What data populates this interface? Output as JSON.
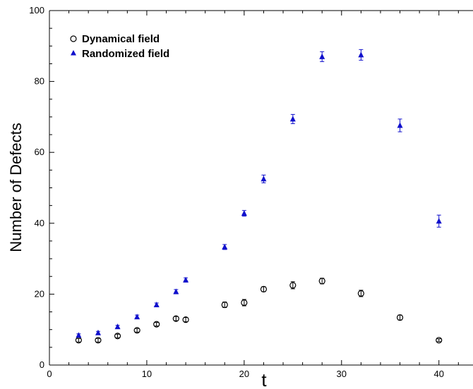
{
  "chart_data": {
    "type": "scatter",
    "title": "",
    "xlabel": "t",
    "ylabel": "Number of Defects",
    "xlim": [
      0,
      43.5
    ],
    "ylim": [
      0,
      100
    ],
    "xticks": [
      0,
      10,
      20,
      30,
      40
    ],
    "yticks": [
      0,
      20,
      40,
      60,
      80,
      100
    ],
    "grid": false,
    "legend_position": "top-left",
    "series": [
      {
        "name": "Dynamical field",
        "marker": "open-circle",
        "color": "#000000",
        "points": [
          {
            "x": 3,
            "y": 7.0,
            "err": 0.5
          },
          {
            "x": 5,
            "y": 7.0,
            "err": 0.5
          },
          {
            "x": 7,
            "y": 8.2,
            "err": 0.5
          },
          {
            "x": 9,
            "y": 9.8,
            "err": 0.5
          },
          {
            "x": 11,
            "y": 11.5,
            "err": 0.5
          },
          {
            "x": 13,
            "y": 13.1,
            "err": 0.6
          },
          {
            "x": 14,
            "y": 12.8,
            "err": 0.6
          },
          {
            "x": 18,
            "y": 17.0,
            "err": 0.8
          },
          {
            "x": 20,
            "y": 17.6,
            "err": 0.9
          },
          {
            "x": 22,
            "y": 21.4,
            "err": 0.7
          },
          {
            "x": 25,
            "y": 22.5,
            "err": 1.0
          },
          {
            "x": 28,
            "y": 23.7,
            "err": 0.8
          },
          {
            "x": 32,
            "y": 20.2,
            "err": 0.9
          },
          {
            "x": 36,
            "y": 13.4,
            "err": 0.7
          },
          {
            "x": 40,
            "y": 7.0,
            "err": 0.4
          }
        ]
      },
      {
        "name": "Randomized field",
        "marker": "filled-triangle",
        "color": "#1010cc",
        "points": [
          {
            "x": 3,
            "y": 8.4,
            "err": 0.4
          },
          {
            "x": 5,
            "y": 9.1,
            "err": 0.4
          },
          {
            "x": 7,
            "y": 10.8,
            "err": 0.4
          },
          {
            "x": 9,
            "y": 13.6,
            "err": 0.5
          },
          {
            "x": 11,
            "y": 17.0,
            "err": 0.5
          },
          {
            "x": 13,
            "y": 20.7,
            "err": 0.6
          },
          {
            "x": 14,
            "y": 24.0,
            "err": 0.6
          },
          {
            "x": 18,
            "y": 33.3,
            "err": 0.7
          },
          {
            "x": 20,
            "y": 42.8,
            "err": 0.8
          },
          {
            "x": 22,
            "y": 52.5,
            "err": 1.1
          },
          {
            "x": 25,
            "y": 69.4,
            "err": 1.3
          },
          {
            "x": 28,
            "y": 87.0,
            "err": 1.4
          },
          {
            "x": 32,
            "y": 87.5,
            "err": 1.5
          },
          {
            "x": 36,
            "y": 67.6,
            "err": 1.8
          },
          {
            "x": 40,
            "y": 40.6,
            "err": 1.7
          }
        ]
      }
    ]
  }
}
